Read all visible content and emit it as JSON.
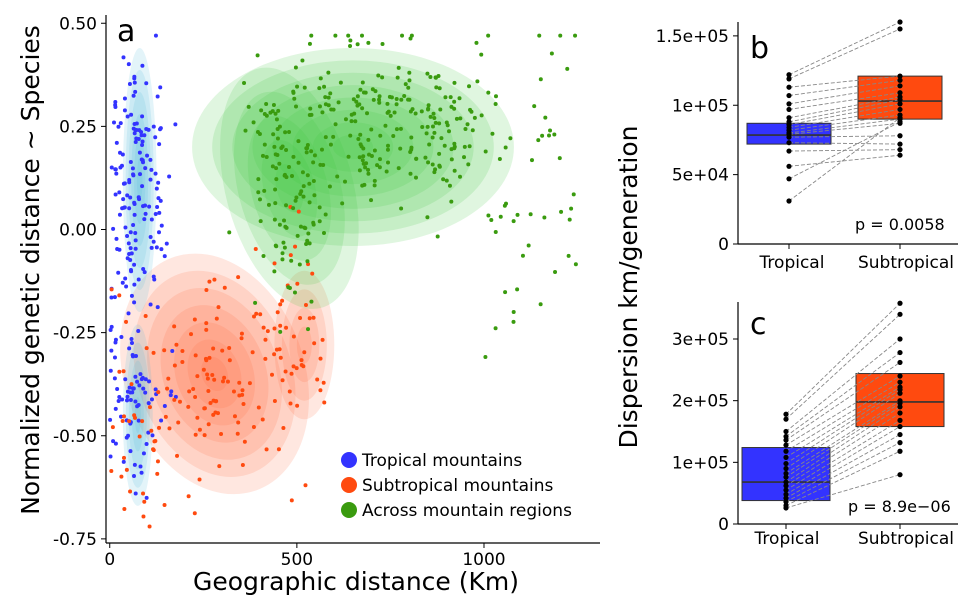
{
  "colors": {
    "tropical": "#3333ff",
    "subtropical": "#ff4a0f",
    "across": "#3a9b0f",
    "tropical_density": "#4fb8d8",
    "subtropical_density": "#ff6a3d",
    "across_density": "#3fc43f"
  },
  "chart_data": [
    {
      "type": "scatter",
      "panel": "a",
      "xlabel": "Geographic distance (Km)",
      "ylabel": "Normalized genetic distance ~ Species",
      "xlim": [
        -10,
        1310
      ],
      "ylim": [
        -0.76,
        0.52
      ],
      "x_ticks": [
        0,
        500,
        1000
      ],
      "x_tick_labels": [
        "0",
        "500",
        "1000"
      ],
      "y_ticks": [
        0.5,
        0.25,
        0.0,
        -0.25,
        -0.5,
        -0.75
      ],
      "y_tick_labels": [
        "0.50",
        "0.25",
        "0.00",
        "-0.25",
        "-0.50",
        "-0.75"
      ],
      "grid": false,
      "legend_position": "bottom-right",
      "series": [
        {
          "name": "Tropical mountains",
          "key": "tropical",
          "cluster": {
            "x_range": [
              0,
              190
            ],
            "y_range": [
              -0.72,
              0.47
            ],
            "count": 230
          },
          "density_centers": [
            [
              75,
              0.1
            ],
            [
              70,
              -0.45
            ]
          ]
        },
        {
          "name": "Subtropical mountains",
          "key": "subtropical",
          "cluster": {
            "x_range": [
              0,
              820
            ],
            "y_range": [
              -0.72,
              0.12
            ],
            "count": 180
          },
          "density_centers": [
            [
              280,
              -0.4
            ],
            [
              500,
              -0.25
            ]
          ]
        },
        {
          "name": "Across mountain regions",
          "key": "across",
          "cluster": {
            "x_range": [
              150,
              1260
            ],
            "y_range": [
              -0.35,
              0.47
            ],
            "count": 380
          },
          "density_centers": [
            [
              480,
              0.17
            ],
            [
              700,
              0.27
            ],
            [
              900,
              0.27
            ]
          ]
        }
      ]
    },
    {
      "type": "box",
      "panel": "b",
      "ylabel": "Dispersion km/generation",
      "categories": [
        "Tropical",
        "Subtropical"
      ],
      "y_ticks": [
        0,
        50000,
        100000,
        150000
      ],
      "y_tick_labels": [
        "0",
        "5e+04",
        "1e+05",
        "1.5e+05"
      ],
      "ylim": [
        0,
        160000
      ],
      "boxes": [
        {
          "category": "Tropical",
          "q1": 72000,
          "median": 78500,
          "q3": 87000
        },
        {
          "category": "Subtropical",
          "q1": 90000,
          "median": 103000,
          "q3": 121000
        }
      ],
      "pairs": [
        [
          122000,
          160000
        ],
        [
          119000,
          155000
        ],
        [
          113000,
          121000
        ],
        [
          107000,
          118000
        ],
        [
          101000,
          114000
        ],
        [
          97000,
          109000
        ],
        [
          91000,
          106000
        ],
        [
          88000,
          104000
        ],
        [
          86000,
          101000
        ],
        [
          84000,
          97000
        ],
        [
          82000,
          93000
        ],
        [
          80000,
          90000
        ],
        [
          79000,
          87000
        ],
        [
          77000,
          78000
        ],
        [
          73000,
          72000
        ],
        [
          67000,
          68000
        ],
        [
          56000,
          64000
        ],
        [
          47000,
          88000
        ],
        [
          31000,
          91000
        ]
      ],
      "p_value": "p = 0.0058"
    },
    {
      "type": "box",
      "panel": "c",
      "ylabel": "Dispersion km/generation",
      "categories": [
        "Tropical",
        "Subtropical"
      ],
      "y_ticks": [
        0,
        100000,
        200000,
        300000
      ],
      "y_tick_labels": [
        "0",
        "1e+05",
        "2e+05",
        "3e+05"
      ],
      "ylim": [
        0,
        360000
      ],
      "boxes": [
        {
          "category": "Tropical",
          "q1": 38000,
          "median": 68000,
          "q3": 124000
        },
        {
          "category": "Subtropical",
          "q1": 158000,
          "median": 198000,
          "q3": 244000
        }
      ],
      "pairs": [
        [
          178000,
          358000
        ],
        [
          170000,
          340000
        ],
        [
          150000,
          300000
        ],
        [
          142000,
          278000
        ],
        [
          136000,
          262000
        ],
        [
          128000,
          240000
        ],
        [
          118000,
          230000
        ],
        [
          108000,
          222000
        ],
        [
          98000,
          218000
        ],
        [
          90000,
          212000
        ],
        [
          82000,
          200000
        ],
        [
          76000,
          196000
        ],
        [
          68000,
          190000
        ],
        [
          62000,
          180000
        ],
        [
          55000,
          168000
        ],
        [
          48000,
          158000
        ],
        [
          42000,
          145000
        ],
        [
          36000,
          132000
        ],
        [
          30000,
          118000
        ],
        [
          26000,
          80000
        ]
      ],
      "p_value": "p = 8.9e−06"
    }
  ],
  "panel_a": {
    "letter": "a",
    "legend": [
      {
        "label": "Tropical mountains",
        "key": "tropical"
      },
      {
        "label": "Subtropical mountains",
        "key": "subtropical"
      },
      {
        "label": "Across mountain regions",
        "key": "across"
      }
    ]
  },
  "panel_b": {
    "letter": "b"
  },
  "panel_c": {
    "letter": "c"
  }
}
